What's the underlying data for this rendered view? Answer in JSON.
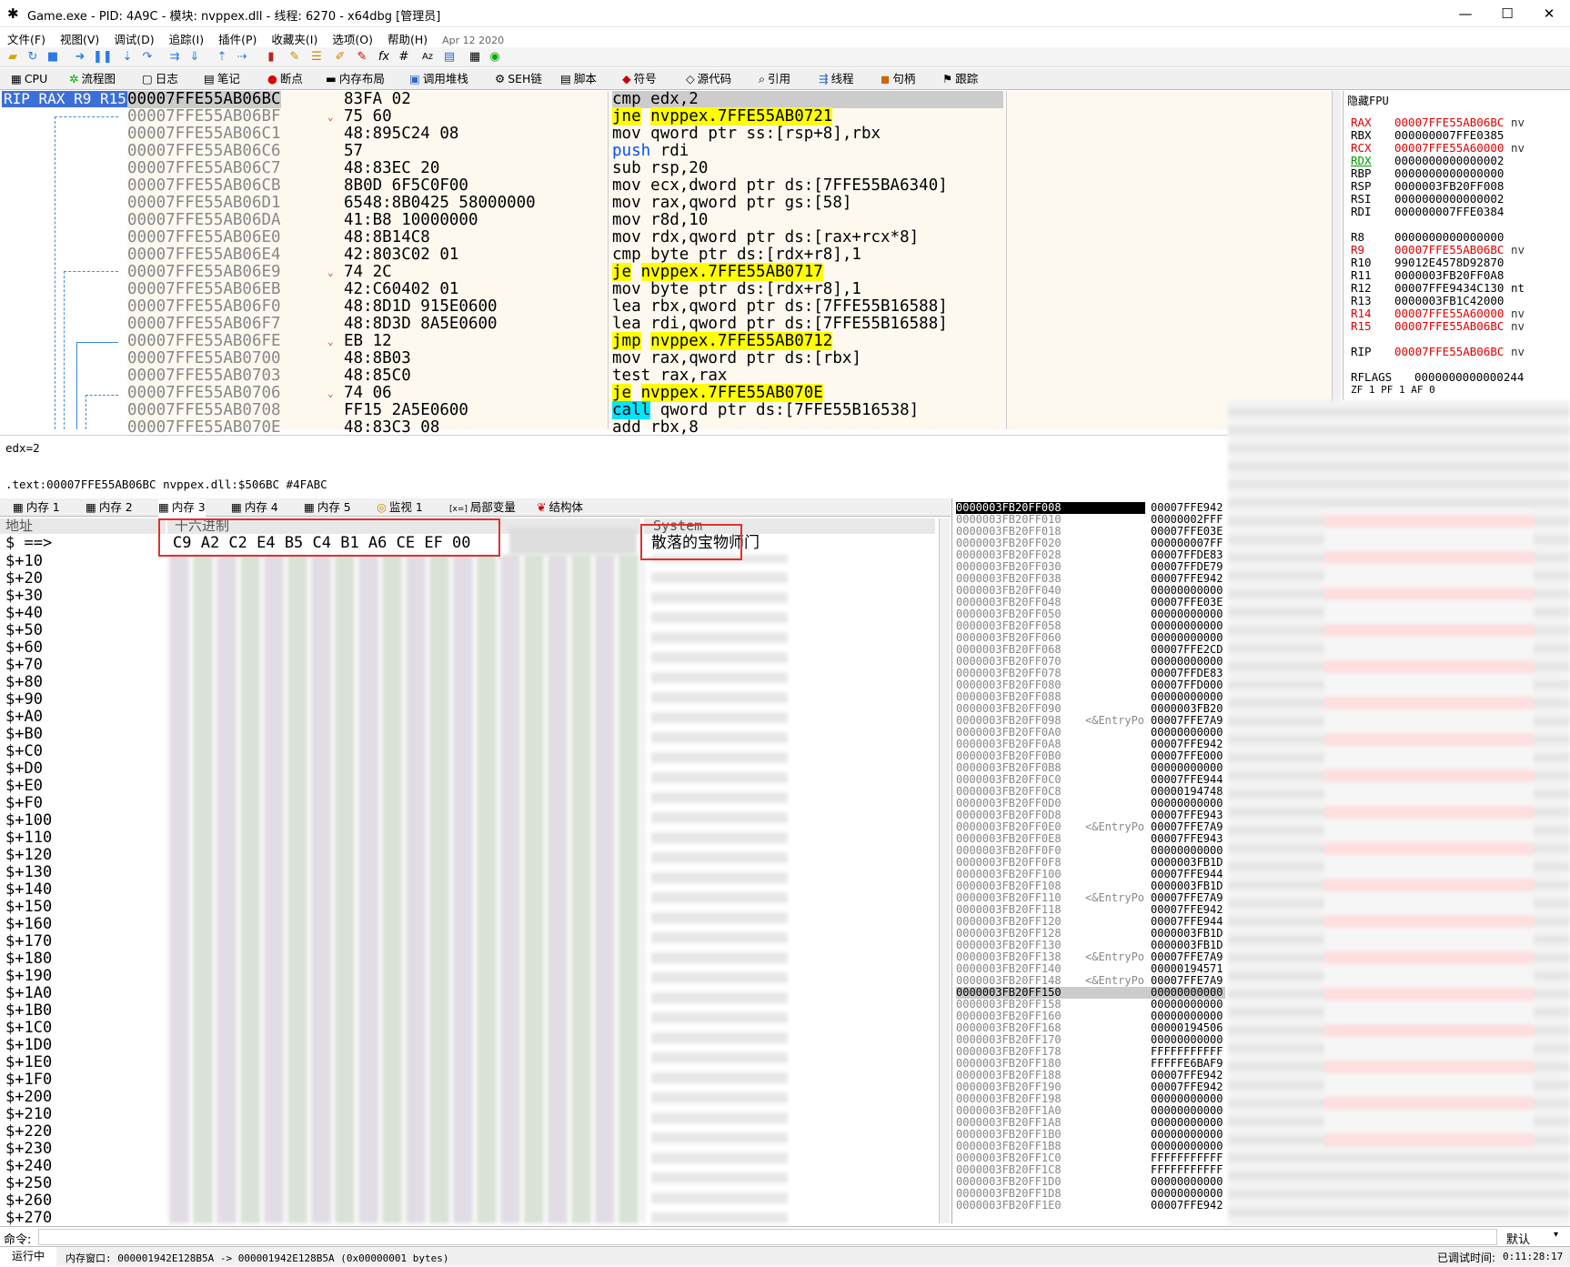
{
  "window": {
    "title": "Game.exe - PID: 4A9C - 模块: nvppex.dll - 线程: 6270 - x64dbg [管理员]",
    "min": "—",
    "max": "☐",
    "close": "✕"
  },
  "menu": {
    "items": [
      "文件(F)",
      "视图(V)",
      "调试(D)",
      "追踪(I)",
      "插件(P)",
      "收藏夹(I)",
      "选项(O)",
      "帮助(H)"
    ],
    "date": "Apr 12 2020"
  },
  "tabs": [
    "CPU",
    "流程图",
    "日志",
    "笔记",
    "断点",
    "内存布局",
    "调用堆栈",
    "SEH链",
    "脚本",
    "符号",
    "源代码",
    "引用",
    "线程",
    "句柄",
    "跟踪"
  ],
  "cpu": {
    "reg_label": "RIP RAX R9 R15",
    "rows": [
      {
        "addr": "00007FFE55AB06BC",
        "bytes": "83FA 02",
        "mn": "cmp",
        "op": "edx,2"
      },
      {
        "addr": "00007FFE55AB06BF",
        "bytes": "75 60",
        "mn": "jne",
        "op": "nvppex.7FFE55AB0721"
      },
      {
        "addr": "00007FFE55AB06C1",
        "bytes": "48:895C24 08",
        "mn": "mov",
        "op": "qword ptr ss:[rsp+8],rbx"
      },
      {
        "addr": "00007FFE55AB06C6",
        "bytes": "57",
        "mn": "push",
        "op": "rdi"
      },
      {
        "addr": "00007FFE55AB06C7",
        "bytes": "48:83EC 20",
        "mn": "sub",
        "op": "rsp,20"
      },
      {
        "addr": "00007FFE55AB06CB",
        "bytes": "8B0D 6F5C0F00",
        "mn": "mov",
        "op": "ecx,dword ptr ds:[7FFE55BA6340]"
      },
      {
        "addr": "00007FFE55AB06D1",
        "bytes": "6548:8B0425 58000000",
        "mn": "mov",
        "op": "rax,qword ptr gs:[58]"
      },
      {
        "addr": "00007FFE55AB06DA",
        "bytes": "41:B8 10000000",
        "mn": "mov",
        "op": "r8d,10"
      },
      {
        "addr": "00007FFE55AB06E0",
        "bytes": "48:8B14C8",
        "mn": "mov",
        "op": "rdx,qword ptr ds:[rax+rcx*8]"
      },
      {
        "addr": "00007FFE55AB06E4",
        "bytes": "42:803C02 01",
        "mn": "cmp",
        "op": "byte ptr ds:[rdx+r8],1"
      },
      {
        "addr": "00007FFE55AB06E9",
        "bytes": "74 2C",
        "mn": "je",
        "op": "nvppex.7FFE55AB0717"
      },
      {
        "addr": "00007FFE55AB06EB",
        "bytes": "42:C60402 01",
        "mn": "mov",
        "op": "byte ptr ds:[rdx+r8],1"
      },
      {
        "addr": "00007FFE55AB06F0",
        "bytes": "48:8D1D 915E0600",
        "mn": "lea",
        "op": "rbx,qword ptr ds:[7FFE55B16588]"
      },
      {
        "addr": "00007FFE55AB06F7",
        "bytes": "48:8D3D 8A5E0600",
        "mn": "lea",
        "op": "rdi,qword ptr ds:[7FFE55B16588]"
      },
      {
        "addr": "00007FFE55AB06FE",
        "bytes": "EB 12",
        "mn": "jmp",
        "op": "nvppex.7FFE55AB0712"
      },
      {
        "addr": "00007FFE55AB0700",
        "bytes": "48:8B03",
        "mn": "mov",
        "op": "rax,qword ptr ds:[rbx]"
      },
      {
        "addr": "00007FFE55AB0703",
        "bytes": "48:85C0",
        "mn": "test",
        "op": "rax,rax"
      },
      {
        "addr": "00007FFE55AB0706",
        "bytes": "74 06",
        "mn": "je",
        "op": "nvppex.7FFE55AB070E"
      },
      {
        "addr": "00007FFE55AB0708",
        "bytes": "FF15 2A5E0600",
        "mn": "call",
        "op": "qword ptr ds:[7FFE55B16538]"
      },
      {
        "addr": "00007FFE55AB070E",
        "bytes": "48:83C3 08",
        "mn": "add",
        "op": "rbx,8"
      }
    ]
  },
  "registers": {
    "header": "隐藏FPU",
    "list": [
      {
        "n": "RAX",
        "v": "00007FFE55AB06BC",
        "c": "red",
        "x": "nv"
      },
      {
        "n": "RBX",
        "v": "000000007FFE0385",
        "c": "",
        "x": ""
      },
      {
        "n": "RCX",
        "v": "00007FFE55A60000",
        "c": "red",
        "x": "nv"
      },
      {
        "n": "RDX",
        "v": "0000000000000002",
        "c": "green",
        "x": ""
      },
      {
        "n": "RBP",
        "v": "0000000000000000",
        "c": "",
        "x": ""
      },
      {
        "n": "RSP",
        "v": "0000003FB20FF008",
        "c": "",
        "x": ""
      },
      {
        "n": "RSI",
        "v": "0000000000000002",
        "c": "",
        "x": ""
      },
      {
        "n": "RDI",
        "v": "000000007FFE0384",
        "c": "",
        "x": ""
      },
      {
        "n": "",
        "v": "",
        "c": "",
        "x": ""
      },
      {
        "n": "R8",
        "v": "0000000000000000",
        "c": "",
        "x": ""
      },
      {
        "n": "R9",
        "v": "00007FFE55AB06BC",
        "c": "red",
        "x": "nv"
      },
      {
        "n": "R10",
        "v": "99012E4578D92870",
        "c": "",
        "x": ""
      },
      {
        "n": "R11",
        "v": "0000003FB20FF0A8",
        "c": "",
        "x": ""
      },
      {
        "n": "R12",
        "v": "00007FFE9434C130",
        "c": "",
        "x": "nt"
      },
      {
        "n": "R13",
        "v": "0000003FB1C42000",
        "c": "",
        "x": ""
      },
      {
        "n": "R14",
        "v": "00007FFE55A60000",
        "c": "red",
        "x": "nv"
      },
      {
        "n": "R15",
        "v": "00007FFE55AB06BC",
        "c": "red",
        "x": "nv"
      },
      {
        "n": "",
        "v": "",
        "c": "",
        "x": ""
      },
      {
        "n": "RIP",
        "v": "00007FFE55AB06BC",
        "c": "red",
        "x": "nv"
      },
      {
        "n": "",
        "v": "",
        "c": "",
        "x": ""
      },
      {
        "n": "RFLAGS",
        "v": "0000000000000244",
        "c": "",
        "x": ""
      },
      {
        "n": "ZF 1  PF 1  AF 0",
        "v": "",
        "c": "",
        "x": ""
      }
    ]
  },
  "info": {
    "line1": "edx=2",
    "line2": ".text:00007FFE55AB06BC nvppex.dll:$506BC #4FABC"
  },
  "dump_tabs": [
    "内存 1",
    "内存 2",
    "内存 3",
    "内存 4",
    "内存 5",
    "监视 1",
    "局部变量",
    "结构体"
  ],
  "dump": {
    "hdr_addr": "地址",
    "hdr_hex": "十六进制",
    "hdr_text": "System",
    "first_label": "$ ==>",
    "first_hex": "C9 A2 C2 E4 B5 C4 B1 A6 CE EF 00",
    "first_text": "散落的宝物师门",
    "offsets": [
      "$+10",
      "$+20",
      "$+30",
      "$+40",
      "$+50",
      "$+60",
      "$+70",
      "$+80",
      "$+90",
      "$+A0",
      "$+B0",
      "$+C0",
      "$+D0",
      "$+E0",
      "$+F0",
      "$+100",
      "$+110",
      "$+120",
      "$+130",
      "$+140",
      "$+150",
      "$+160",
      "$+170",
      "$+180",
      "$+190",
      "$+1A0",
      "$+1B0",
      "$+1C0",
      "$+1D0",
      "$+1E0",
      "$+1F0",
      "$+200",
      "$+210",
      "$+220",
      "$+230",
      "$+240",
      "$+250",
      "$+260",
      "$+270"
    ]
  },
  "stack": {
    "rows": [
      {
        "a": "0000003FB20FF008",
        "c": "",
        "v": "00007FFE942"
      },
      {
        "a": "0000003FB20FF010",
        "c": "",
        "v": "00000002FFF"
      },
      {
        "a": "0000003FB20FF018",
        "c": "",
        "v": "00007FFE03E"
      },
      {
        "a": "0000003FB20FF020",
        "c": "",
        "v": "000000007FF"
      },
      {
        "a": "0000003FB20FF028",
        "c": "",
        "v": "00007FFDE83"
      },
      {
        "a": "0000003FB20FF030",
        "c": "",
        "v": "00007FFDE79"
      },
      {
        "a": "0000003FB20FF038",
        "c": "",
        "v": "00007FFE942"
      },
      {
        "a": "0000003FB20FF040",
        "c": "",
        "v": "00000000000"
      },
      {
        "a": "0000003FB20FF048",
        "c": "",
        "v": "00007FFE03E"
      },
      {
        "a": "0000003FB20FF050",
        "c": "",
        "v": "00000000000"
      },
      {
        "a": "0000003FB20FF058",
        "c": "",
        "v": "00000000000"
      },
      {
        "a": "0000003FB20FF060",
        "c": "",
        "v": "00000000000"
      },
      {
        "a": "0000003FB20FF068",
        "c": "",
        "v": "00007FFE2CD"
      },
      {
        "a": "0000003FB20FF070",
        "c": "",
        "v": "00000000000"
      },
      {
        "a": "0000003FB20FF078",
        "c": "",
        "v": "00007FFDE83"
      },
      {
        "a": "0000003FB20FF080",
        "c": "",
        "v": "00007FFD000"
      },
      {
        "a": "0000003FB20FF088",
        "c": "",
        "v": "00000000000"
      },
      {
        "a": "0000003FB20FF090",
        "c": "",
        "v": "0000003FB20"
      },
      {
        "a": "0000003FB20FF098",
        "c": "<&EntryPo",
        "v": "00007FFE7A9"
      },
      {
        "a": "0000003FB20FF0A0",
        "c": "",
        "v": "00000000000"
      },
      {
        "a": "0000003FB20FF0A8",
        "c": "",
        "v": "00007FFE942"
      },
      {
        "a": "0000003FB20FF0B0",
        "c": "",
        "v": "00007FFE000"
      },
      {
        "a": "0000003FB20FF0B8",
        "c": "",
        "v": "00000000000"
      },
      {
        "a": "0000003FB20FF0C0",
        "c": "",
        "v": "00007FFE944"
      },
      {
        "a": "0000003FB20FF0C8",
        "c": "",
        "v": "00000194748"
      },
      {
        "a": "0000003FB20FF0D0",
        "c": "",
        "v": "00000000000"
      },
      {
        "a": "0000003FB20FF0D8",
        "c": "",
        "v": "00007FFE943"
      },
      {
        "a": "0000003FB20FF0E0",
        "c": "<&EntryPo",
        "v": "00007FFE7A9"
      },
      {
        "a": "0000003FB20FF0E8",
        "c": "",
        "v": "00007FFE943"
      },
      {
        "a": "0000003FB20FF0F0",
        "c": "",
        "v": "00000000000"
      },
      {
        "a": "0000003FB20FF0F8",
        "c": "",
        "v": "0000003FB1D"
      },
      {
        "a": "0000003FB20FF100",
        "c": "",
        "v": "00007FFE944"
      },
      {
        "a": "0000003FB20FF108",
        "c": "",
        "v": "0000003FB1D"
      },
      {
        "a": "0000003FB20FF110",
        "c": "<&EntryPo",
        "v": "00007FFE7A9"
      },
      {
        "a": "0000003FB20FF118",
        "c": "",
        "v": "00007FFE942"
      },
      {
        "a": "0000003FB20FF120",
        "c": "",
        "v": "00007FFE944"
      },
      {
        "a": "0000003FB20FF128",
        "c": "",
        "v": "0000003FB1D"
      },
      {
        "a": "0000003FB20FF130",
        "c": "",
        "v": "0000003FB1D"
      },
      {
        "a": "0000003FB20FF138",
        "c": "<&EntryPo",
        "v": "00007FFE7A9"
      },
      {
        "a": "0000003FB20FF140",
        "c": "",
        "v": "00000194571"
      },
      {
        "a": "0000003FB20FF148",
        "c": "<&EntryPo",
        "v": "00007FFE7A9"
      },
      {
        "a": "0000003FB20FF150",
        "c": "",
        "v": "00000000000"
      },
      {
        "a": "0000003FB20FF158",
        "c": "",
        "v": "00000000000"
      },
      {
        "a": "0000003FB20FF160",
        "c": "",
        "v": "00000000000"
      },
      {
        "a": "0000003FB20FF168",
        "c": "",
        "v": "00000194506"
      },
      {
        "a": "0000003FB20FF170",
        "c": "",
        "v": "00000000000"
      },
      {
        "a": "0000003FB20FF178",
        "c": "",
        "v": "FFFFFFFFFFF"
      },
      {
        "a": "0000003FB20FF180",
        "c": "",
        "v": "FFFFFE6BAF9"
      },
      {
        "a": "0000003FB20FF188",
        "c": "",
        "v": "00007FFE942"
      },
      {
        "a": "0000003FB20FF190",
        "c": "",
        "v": "00007FFE942"
      },
      {
        "a": "0000003FB20FF198",
        "c": "",
        "v": "00000000000"
      },
      {
        "a": "0000003FB20FF1A0",
        "c": "",
        "v": "00000000000"
      },
      {
        "a": "0000003FB20FF1A8",
        "c": "",
        "v": "00000000000"
      },
      {
        "a": "0000003FB20FF1B0",
        "c": "",
        "v": "00000000000"
      },
      {
        "a": "0000003FB20FF1B8",
        "c": "",
        "v": "00000000000"
      },
      {
        "a": "0000003FB20FF1C0",
        "c": "",
        "v": "FFFFFFFFFFF"
      },
      {
        "a": "0000003FB20FF1C8",
        "c": "",
        "v": "FFFFFFFFFFF"
      },
      {
        "a": "0000003FB20FF1D0",
        "c": "",
        "v": "00000000000"
      },
      {
        "a": "0000003FB20FF1D8",
        "c": "",
        "v": "00000000000"
      },
      {
        "a": "0000003FB20FF1E0",
        "c": "",
        "v": "00007FFE942"
      }
    ]
  },
  "cmd": {
    "label": "命令:",
    "mode": "默认"
  },
  "status": {
    "state": "运行中",
    "message": "内存窗口: 000001942E128B5A -> 000001942E128B5A (0x00000001 bytes)",
    "time_label": "已调试时间:",
    "time": "0:11:28:17"
  },
  "colors": {
    "highlight": "#ffff00",
    "cyan": "#00e5ff",
    "regsel": "#3c6fd8",
    "red": "#e03030"
  }
}
